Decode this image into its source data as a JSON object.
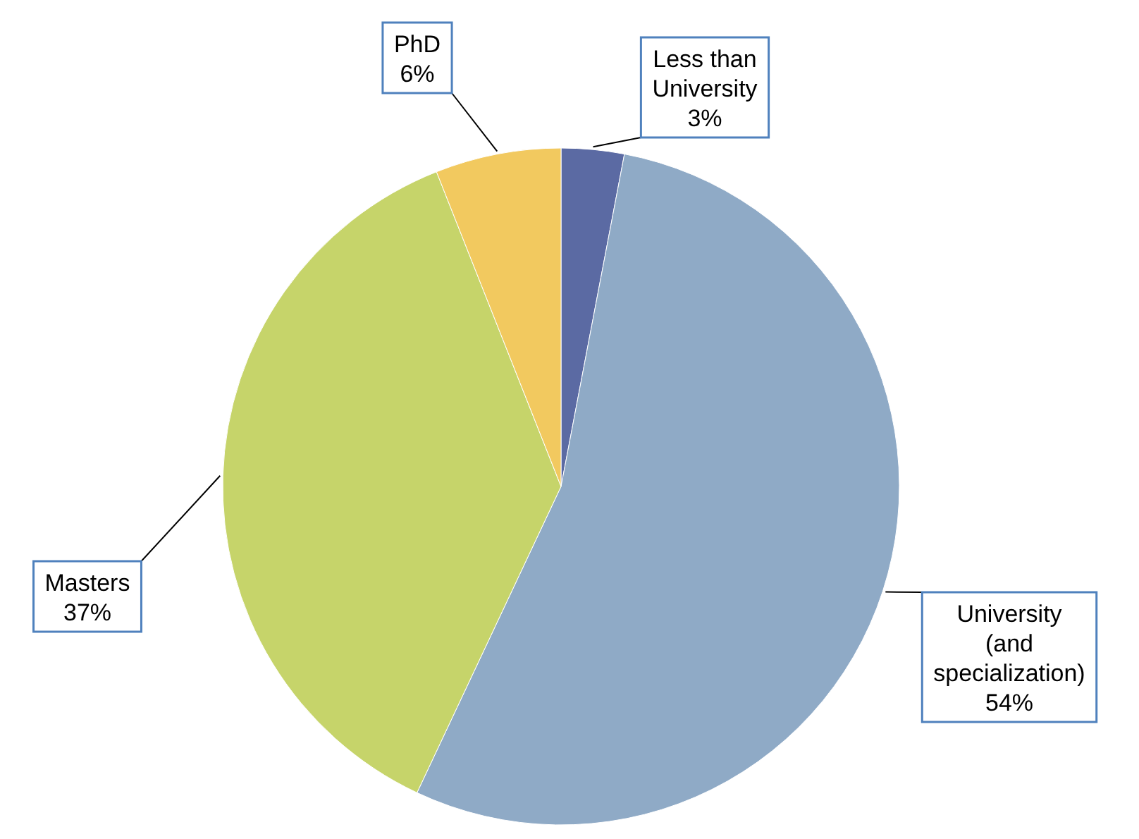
{
  "chart_data": {
    "type": "pie",
    "categories": [
      "Less than University",
      "University (and specialization)",
      "Masters",
      "PhD"
    ],
    "values": [
      3,
      54,
      37,
      6
    ],
    "value_labels": [
      "3%",
      "54%",
      "37%",
      "6%"
    ],
    "colors": [
      "#5b6aa3",
      "#8faac6",
      "#c6d46a",
      "#f2c95f"
    ]
  }
}
